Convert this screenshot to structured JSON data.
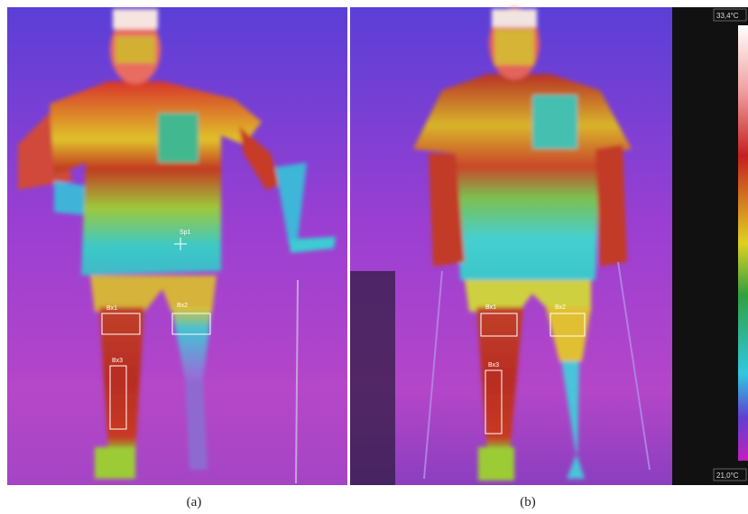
{
  "panels": [
    {
      "caption": "(a)",
      "annotations": [
        "Sp1",
        "Bx1",
        "Bx2",
        "Bx3"
      ]
    },
    {
      "caption": "(b)",
      "annotations": [
        "Bx1",
        "Bx2",
        "Bx3"
      ]
    }
  ],
  "scale": {
    "max": "33,4°C",
    "min": "21,0°C"
  }
}
